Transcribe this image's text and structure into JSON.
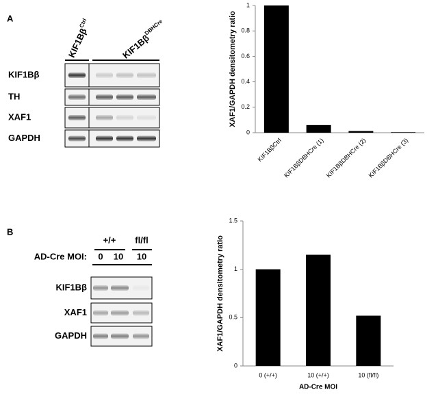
{
  "chart_data": [
    {
      "type": "bar",
      "ylabel": "XAF1/GAPDH densitometry ratio",
      "categories": [
        "KIF1BβCtrl",
        "KIF1BβDBHCre (1)",
        "KIF1BβDBHCre (2)",
        "KIF1BβDBHCre (3)"
      ],
      "values": [
        1,
        0.06,
        0.013,
        0.004
      ],
      "color": "#000000",
      "ylim": [
        0,
        1
      ],
      "yticks": [
        0,
        0.2,
        0.4,
        0.6,
        0.8,
        1
      ],
      "grid": false,
      "rotate_labels": true
    },
    {
      "type": "bar",
      "ylabel": "XAF1/GAPDH densitometry ratio",
      "xlabel": "AD-Cre MOI",
      "categories": [
        "0 (+/+)",
        "10 (+/+)",
        "10 (fl/fl)"
      ],
      "values": [
        1,
        1.15,
        0.52
      ],
      "color": "#000000",
      "ylim": [
        0,
        1.5
      ],
      "yticks": [
        0,
        0.5,
        1,
        1.5
      ],
      "grid": false,
      "rotate_labels": false
    }
  ],
  "panels": [
    {
      "label": "A",
      "lanes": [
        {
          "name": "KIF1Bβ",
          "superscript": "Ctrl"
        },
        {
          "name": "KIF1Bβ",
          "superscript": "DBHCre"
        }
      ],
      "rows": [
        "KIF1Bβ",
        "TH",
        "XAF1",
        "GAPDH"
      ]
    },
    {
      "label": "B",
      "groups": [
        "+/+",
        "fl/fl"
      ],
      "moi_label": "AD-Cre MOI:",
      "moi": [
        0,
        10,
        10
      ],
      "rows": [
        "KIF1Bβ",
        "XAF1",
        "GAPDH"
      ]
    }
  ]
}
